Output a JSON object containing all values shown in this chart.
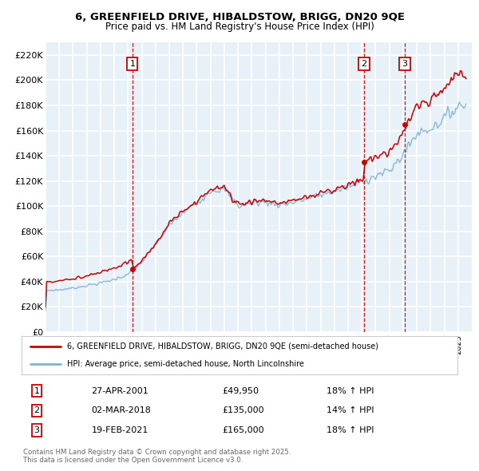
{
  "title1": "6, GREENFIELD DRIVE, HIBALDSTOW, BRIGG, DN20 9QE",
  "title2": "Price paid vs. HM Land Registry's House Price Index (HPI)",
  "ylim": [
    0,
    230000
  ],
  "yticks": [
    0,
    20000,
    40000,
    60000,
    80000,
    100000,
    120000,
    140000,
    160000,
    180000,
    200000,
    220000
  ],
  "ytick_labels": [
    "£0",
    "£20K",
    "£40K",
    "£60K",
    "£80K",
    "£100K",
    "£120K",
    "£140K",
    "£160K",
    "£180K",
    "£200K",
    "£220K"
  ],
  "xmin": 1995.0,
  "xmax": 2026.0,
  "sale_color": "#cc0000",
  "hpi_color": "#7fb3d3",
  "bg_color": "#e8f0f8",
  "grid_color": "#ffffff",
  "sale_dates": [
    2001.32,
    2018.17,
    2021.13
  ],
  "sale_prices": [
    49950,
    135000,
    165000
  ],
  "sale_labels": [
    "1",
    "2",
    "3"
  ],
  "legend_sale_label": "6, GREENFIELD DRIVE, HIBALDSTOW, BRIGG, DN20 9QE (semi-detached house)",
  "legend_hpi_label": "HPI: Average price, semi-detached house, North Lincolnshire",
  "table_rows": [
    [
      "1",
      "27-APR-2001",
      "£49,950",
      "18% ↑ HPI"
    ],
    [
      "2",
      "02-MAR-2018",
      "£135,000",
      "14% ↑ HPI"
    ],
    [
      "3",
      "19-FEB-2021",
      "£165,000",
      "18% ↑ HPI"
    ]
  ],
  "footer_text": "Contains HM Land Registry data © Crown copyright and database right 2025.\nThis data is licensed under the Open Government Licence v3.0.",
  "vline_color": "#cc0000",
  "hpi_anchors": {
    "1995": 33000,
    "1996": 33500,
    "1997": 35000,
    "1998": 37000,
    "1999": 39000,
    "2000": 42000,
    "2001": 46000,
    "2002": 56000,
    "2003": 70000,
    "2004": 85000,
    "2005": 95000,
    "2006": 103000,
    "2007": 113000,
    "2008": 113000,
    "2009": 100000,
    "2010": 103000,
    "2011": 103000,
    "2012": 101000,
    "2013": 103000,
    "2014": 106000,
    "2015": 109000,
    "2016": 112000,
    "2017": 115000,
    "2018": 120000,
    "2019": 124000,
    "2020": 128000,
    "2021": 142000,
    "2022": 158000,
    "2023": 162000,
    "2024": 170000,
    "2025": 180000
  }
}
